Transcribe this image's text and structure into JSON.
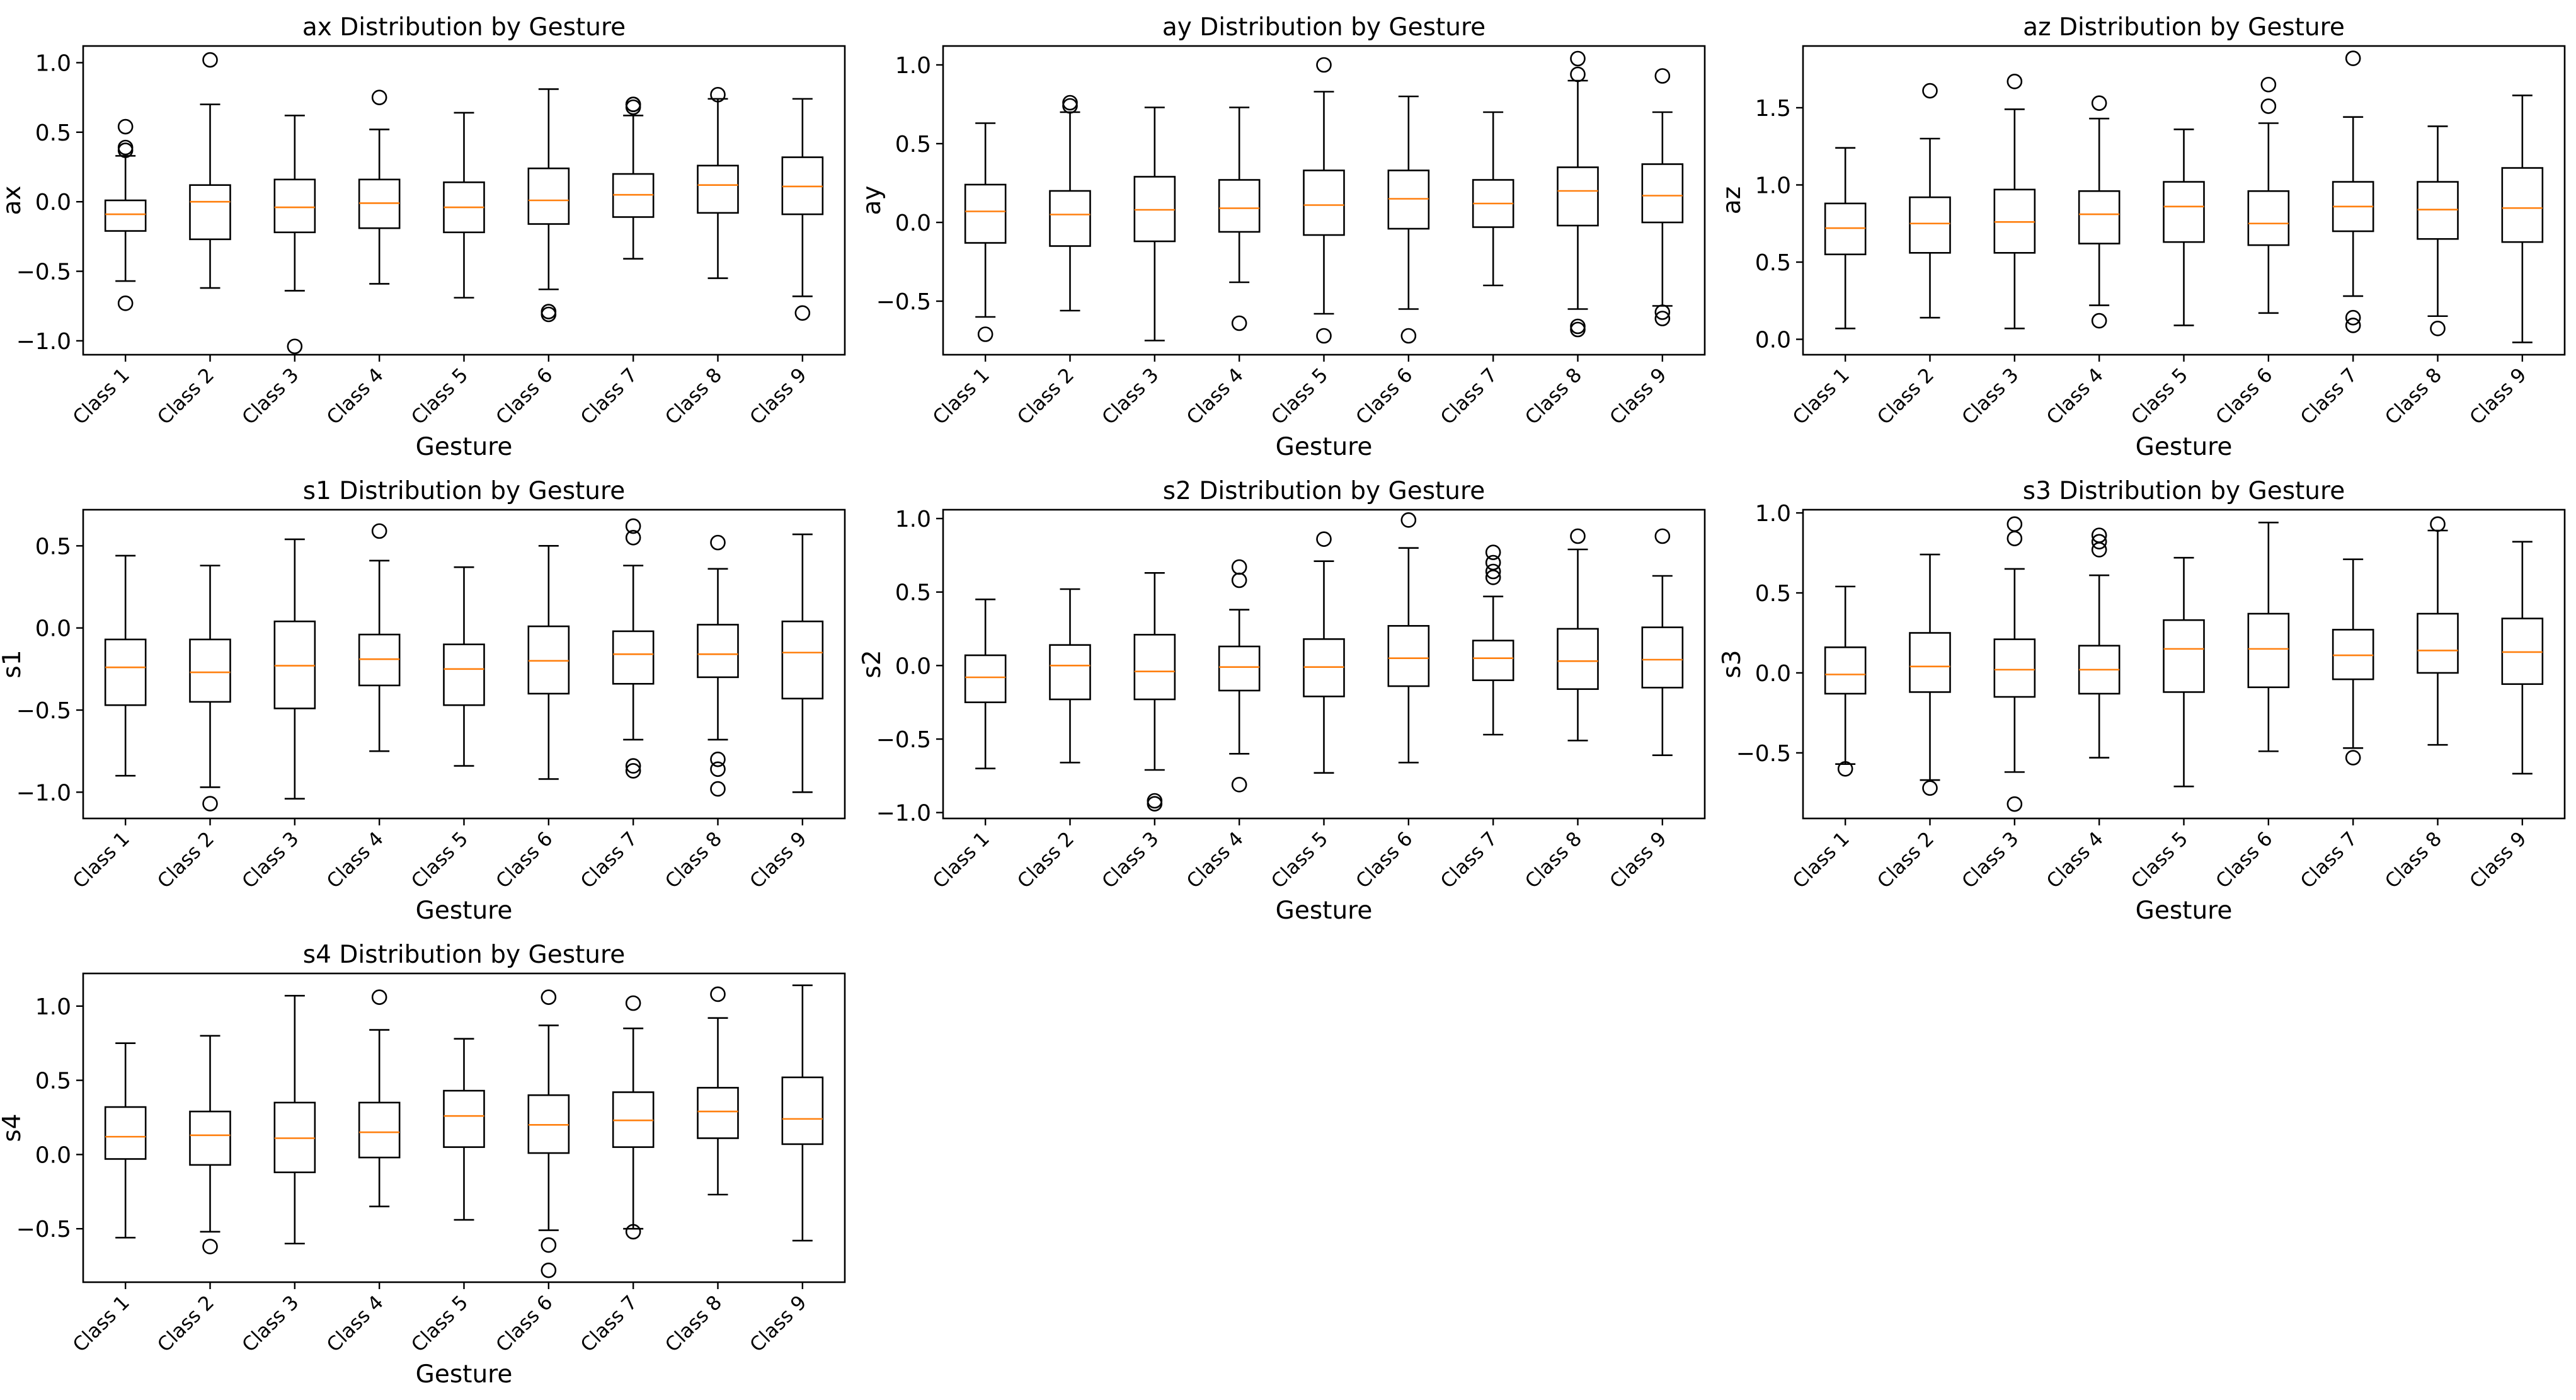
{
  "figure": {
    "colors": {
      "box": "#000000",
      "median": "#ff7f0e",
      "background": "#ffffff"
    }
  },
  "chart_data": [
    {
      "type": "boxplot",
      "title": "ax Distribution by Gesture",
      "xlabel": "Gesture",
      "ylabel": "ax",
      "ylim": [
        -1.1,
        1.12
      ],
      "yticks": [
        -1.0,
        -0.5,
        0.0,
        0.5,
        1.0
      ],
      "yticklabels": [
        "−1.0",
        "−0.5",
        "0.0",
        "0.5",
        "1.0"
      ],
      "categories": [
        "Class 1",
        "Class 2",
        "Class 3",
        "Class 4",
        "Class 5",
        "Class 6",
        "Class 7",
        "Class 8",
        "Class 9"
      ],
      "boxes": [
        {
          "whislo": -0.57,
          "q1": -0.21,
          "med": -0.09,
          "q3": 0.01,
          "whishi": 0.33,
          "fliers": [
            0.54,
            0.39,
            0.37,
            -0.73
          ]
        },
        {
          "whislo": -0.62,
          "q1": -0.27,
          "med": 0.0,
          "q3": 0.12,
          "whishi": 0.7,
          "fliers": [
            1.02
          ]
        },
        {
          "whislo": -0.64,
          "q1": -0.22,
          "med": -0.04,
          "q3": 0.16,
          "whishi": 0.62,
          "fliers": [
            -1.04
          ]
        },
        {
          "whislo": -0.59,
          "q1": -0.19,
          "med": -0.01,
          "q3": 0.16,
          "whishi": 0.52,
          "fliers": [
            0.75
          ]
        },
        {
          "whislo": -0.69,
          "q1": -0.22,
          "med": -0.04,
          "q3": 0.14,
          "whishi": 0.64,
          "fliers": []
        },
        {
          "whislo": -0.63,
          "q1": -0.16,
          "med": 0.01,
          "q3": 0.24,
          "whishi": 0.81,
          "fliers": [
            -0.79,
            -0.81
          ]
        },
        {
          "whislo": -0.41,
          "q1": -0.11,
          "med": 0.05,
          "q3": 0.2,
          "whishi": 0.62,
          "fliers": [
            0.68,
            0.7,
            0.7
          ]
        },
        {
          "whislo": -0.55,
          "q1": -0.08,
          "med": 0.12,
          "q3": 0.26,
          "whishi": 0.74,
          "fliers": [
            0.77
          ]
        },
        {
          "whislo": -0.68,
          "q1": -0.09,
          "med": 0.11,
          "q3": 0.32,
          "whishi": 0.74,
          "fliers": [
            -0.8
          ]
        }
      ]
    },
    {
      "type": "boxplot",
      "title": "ay Distribution by Gesture",
      "xlabel": "Gesture",
      "ylabel": "ay",
      "ylim": [
        -0.84,
        1.12
      ],
      "yticks": [
        -0.5,
        0.0,
        0.5,
        1.0
      ],
      "yticklabels": [
        "−0.5",
        "0.0",
        "0.5",
        "1.0"
      ],
      "categories": [
        "Class 1",
        "Class 2",
        "Class 3",
        "Class 4",
        "Class 5",
        "Class 6",
        "Class 7",
        "Class 8",
        "Class 9"
      ],
      "boxes": [
        {
          "whislo": -0.6,
          "q1": -0.13,
          "med": 0.07,
          "q3": 0.24,
          "whishi": 0.63,
          "fliers": [
            -0.71
          ]
        },
        {
          "whislo": -0.56,
          "q1": -0.15,
          "med": 0.05,
          "q3": 0.2,
          "whishi": 0.7,
          "fliers": [
            0.74,
            0.76
          ]
        },
        {
          "whislo": -0.75,
          "q1": -0.12,
          "med": 0.08,
          "q3": 0.29,
          "whishi": 0.73,
          "fliers": []
        },
        {
          "whislo": -0.38,
          "q1": -0.06,
          "med": 0.09,
          "q3": 0.27,
          "whishi": 0.73,
          "fliers": [
            -0.64
          ]
        },
        {
          "whislo": -0.58,
          "q1": -0.08,
          "med": 0.11,
          "q3": 0.33,
          "whishi": 0.83,
          "fliers": [
            1.0,
            -0.72
          ]
        },
        {
          "whislo": -0.55,
          "q1": -0.04,
          "med": 0.15,
          "q3": 0.33,
          "whishi": 0.8,
          "fliers": [
            -0.72
          ]
        },
        {
          "whislo": -0.4,
          "q1": -0.03,
          "med": 0.12,
          "q3": 0.27,
          "whishi": 0.7,
          "fliers": []
        },
        {
          "whislo": -0.55,
          "q1": -0.02,
          "med": 0.2,
          "q3": 0.35,
          "whishi": 0.9,
          "fliers": [
            1.04,
            0.94,
            -0.66,
            -0.68
          ]
        },
        {
          "whislo": -0.53,
          "q1": 0.0,
          "med": 0.17,
          "q3": 0.37,
          "whishi": 0.7,
          "fliers": [
            0.93,
            -0.57,
            -0.61
          ]
        }
      ]
    },
    {
      "type": "boxplot",
      "title": "az Distribution by Gesture",
      "xlabel": "Gesture",
      "ylabel": "az",
      "ylim": [
        -0.1,
        1.9
      ],
      "yticks": [
        0.0,
        0.5,
        1.0,
        1.5
      ],
      "yticklabels": [
        "0.0",
        "0.5",
        "1.0",
        "1.5"
      ],
      "categories": [
        "Class 1",
        "Class 2",
        "Class 3",
        "Class 4",
        "Class 5",
        "Class 6",
        "Class 7",
        "Class 8",
        "Class 9"
      ],
      "boxes": [
        {
          "whislo": 0.07,
          "q1": 0.55,
          "med": 0.72,
          "q3": 0.88,
          "whishi": 1.24,
          "fliers": []
        },
        {
          "whislo": 0.14,
          "q1": 0.56,
          "med": 0.75,
          "q3": 0.92,
          "whishi": 1.3,
          "fliers": [
            1.61
          ]
        },
        {
          "whislo": 0.07,
          "q1": 0.56,
          "med": 0.76,
          "q3": 0.97,
          "whishi": 1.49,
          "fliers": [
            1.67
          ]
        },
        {
          "whislo": 0.22,
          "q1": 0.62,
          "med": 0.81,
          "q3": 0.96,
          "whishi": 1.43,
          "fliers": [
            1.53,
            0.12
          ]
        },
        {
          "whislo": 0.09,
          "q1": 0.63,
          "med": 0.86,
          "q3": 1.02,
          "whishi": 1.36,
          "fliers": []
        },
        {
          "whislo": 0.17,
          "q1": 0.61,
          "med": 0.75,
          "q3": 0.96,
          "whishi": 1.4,
          "fliers": [
            1.65,
            1.51
          ]
        },
        {
          "whislo": 0.28,
          "q1": 0.7,
          "med": 0.86,
          "q3": 1.02,
          "whishi": 1.44,
          "fliers": [
            1.82,
            0.14,
            0.09
          ]
        },
        {
          "whislo": 0.15,
          "q1": 0.65,
          "med": 0.84,
          "q3": 1.02,
          "whishi": 1.38,
          "fliers": [
            0.07
          ]
        },
        {
          "whislo": -0.02,
          "q1": 0.63,
          "med": 0.85,
          "q3": 1.11,
          "whishi": 1.58,
          "fliers": []
        }
      ]
    },
    {
      "type": "boxplot",
      "title": "s1 Distribution by Gesture",
      "xlabel": "Gesture",
      "ylabel": "s1",
      "ylim": [
        -1.16,
        0.72
      ],
      "yticks": [
        -1.0,
        -0.5,
        0.0,
        0.5
      ],
      "yticklabels": [
        "−1.0",
        "−0.5",
        "0.0",
        "0.5"
      ],
      "categories": [
        "Class 1",
        "Class 2",
        "Class 3",
        "Class 4",
        "Class 5",
        "Class 6",
        "Class 7",
        "Class 8",
        "Class 9"
      ],
      "boxes": [
        {
          "whislo": -0.9,
          "q1": -0.47,
          "med": -0.24,
          "q3": -0.07,
          "whishi": 0.44,
          "fliers": []
        },
        {
          "whislo": -0.97,
          "q1": -0.45,
          "med": -0.27,
          "q3": -0.07,
          "whishi": 0.38,
          "fliers": [
            -1.07
          ]
        },
        {
          "whislo": -1.04,
          "q1": -0.49,
          "med": -0.23,
          "q3": 0.04,
          "whishi": 0.54,
          "fliers": []
        },
        {
          "whislo": -0.75,
          "q1": -0.35,
          "med": -0.19,
          "q3": -0.04,
          "whishi": 0.41,
          "fliers": [
            0.59
          ]
        },
        {
          "whislo": -0.84,
          "q1": -0.47,
          "med": -0.25,
          "q3": -0.1,
          "whishi": 0.37,
          "fliers": []
        },
        {
          "whislo": -0.92,
          "q1": -0.4,
          "med": -0.2,
          "q3": 0.01,
          "whishi": 0.5,
          "fliers": []
        },
        {
          "whislo": -0.68,
          "q1": -0.34,
          "med": -0.16,
          "q3": -0.02,
          "whishi": 0.38,
          "fliers": [
            0.62,
            0.55,
            -0.84,
            -0.87
          ]
        },
        {
          "whislo": -0.68,
          "q1": -0.3,
          "med": -0.16,
          "q3": 0.02,
          "whishi": 0.36,
          "fliers": [
            0.52,
            -0.8,
            -0.86,
            -0.98
          ]
        },
        {
          "whislo": -1.0,
          "q1": -0.43,
          "med": -0.15,
          "q3": 0.04,
          "whishi": 0.57,
          "fliers": []
        }
      ]
    },
    {
      "type": "boxplot",
      "title": "s2 Distribution by Gesture",
      "xlabel": "Gesture",
      "ylabel": "s2",
      "ylim": [
        -1.04,
        1.06
      ],
      "yticks": [
        -1.0,
        -0.5,
        0.0,
        0.5,
        1.0
      ],
      "yticklabels": [
        "−1.0",
        "−0.5",
        "0.0",
        "0.5",
        "1.0"
      ],
      "categories": [
        "Class 1",
        "Class 2",
        "Class 3",
        "Class 4",
        "Class 5",
        "Class 6",
        "Class 7",
        "Class 8",
        "Class 9"
      ],
      "boxes": [
        {
          "whislo": -0.7,
          "q1": -0.25,
          "med": -0.08,
          "q3": 0.07,
          "whishi": 0.45,
          "fliers": []
        },
        {
          "whislo": -0.66,
          "q1": -0.23,
          "med": 0.0,
          "q3": 0.14,
          "whishi": 0.52,
          "fliers": []
        },
        {
          "whislo": -0.71,
          "q1": -0.23,
          "med": -0.04,
          "q3": 0.21,
          "whishi": 0.63,
          "fliers": [
            -0.92,
            -0.94
          ]
        },
        {
          "whislo": -0.6,
          "q1": -0.17,
          "med": -0.01,
          "q3": 0.13,
          "whishi": 0.38,
          "fliers": [
            0.67,
            0.58,
            -0.81
          ]
        },
        {
          "whislo": -0.73,
          "q1": -0.21,
          "med": -0.01,
          "q3": 0.18,
          "whishi": 0.71,
          "fliers": [
            0.86
          ]
        },
        {
          "whislo": -0.66,
          "q1": -0.14,
          "med": 0.05,
          "q3": 0.27,
          "whishi": 0.8,
          "fliers": [
            0.99
          ]
        },
        {
          "whislo": -0.47,
          "q1": -0.1,
          "med": 0.05,
          "q3": 0.17,
          "whishi": 0.47,
          "fliers": [
            0.77,
            0.7,
            0.64,
            0.6
          ]
        },
        {
          "whislo": -0.51,
          "q1": -0.16,
          "med": 0.03,
          "q3": 0.25,
          "whishi": 0.79,
          "fliers": [
            0.88
          ]
        },
        {
          "whislo": -0.61,
          "q1": -0.15,
          "med": 0.04,
          "q3": 0.26,
          "whishi": 0.61,
          "fliers": [
            0.88
          ]
        }
      ]
    },
    {
      "type": "boxplot",
      "title": "s3 Distribution by Gesture",
      "xlabel": "Gesture",
      "ylabel": "s3",
      "ylim": [
        -0.91,
        1.02
      ],
      "yticks": [
        -0.5,
        0.0,
        0.5,
        1.0
      ],
      "yticklabels": [
        "−0.5",
        "0.0",
        "0.5",
        "1.0"
      ],
      "categories": [
        "Class 1",
        "Class 2",
        "Class 3",
        "Class 4",
        "Class 5",
        "Class 6",
        "Class 7",
        "Class 8",
        "Class 9"
      ],
      "boxes": [
        {
          "whislo": -0.57,
          "q1": -0.13,
          "med": -0.01,
          "q3": 0.16,
          "whishi": 0.54,
          "fliers": [
            -0.6
          ]
        },
        {
          "whislo": -0.67,
          "q1": -0.12,
          "med": 0.04,
          "q3": 0.25,
          "whishi": 0.74,
          "fliers": [
            -0.72
          ]
        },
        {
          "whislo": -0.62,
          "q1": -0.15,
          "med": 0.02,
          "q3": 0.21,
          "whishi": 0.65,
          "fliers": [
            0.93,
            0.84,
            -0.82
          ]
        },
        {
          "whislo": -0.53,
          "q1": -0.13,
          "med": 0.02,
          "q3": 0.17,
          "whishi": 0.61,
          "fliers": [
            0.86,
            0.82,
            0.77
          ]
        },
        {
          "whislo": -0.71,
          "q1": -0.12,
          "med": 0.15,
          "q3": 0.33,
          "whishi": 0.72,
          "fliers": []
        },
        {
          "whislo": -0.49,
          "q1": -0.09,
          "med": 0.15,
          "q3": 0.37,
          "whishi": 0.94,
          "fliers": []
        },
        {
          "whislo": -0.47,
          "q1": -0.04,
          "med": 0.11,
          "q3": 0.27,
          "whishi": 0.71,
          "fliers": [
            -0.53
          ]
        },
        {
          "whislo": -0.45,
          "q1": 0.0,
          "med": 0.14,
          "q3": 0.37,
          "whishi": 0.89,
          "fliers": [
            0.93
          ]
        },
        {
          "whislo": -0.63,
          "q1": -0.07,
          "med": 0.13,
          "q3": 0.34,
          "whishi": 0.82,
          "fliers": []
        }
      ]
    },
    {
      "type": "boxplot",
      "title": "s4 Distribution by Gesture",
      "xlabel": "Gesture",
      "ylabel": "s4",
      "ylim": [
        -0.86,
        1.22
      ],
      "yticks": [
        -0.5,
        0.0,
        0.5,
        1.0
      ],
      "yticklabels": [
        "−0.5",
        "0.0",
        "0.5",
        "1.0"
      ],
      "categories": [
        "Class 1",
        "Class 2",
        "Class 3",
        "Class 4",
        "Class 5",
        "Class 6",
        "Class 7",
        "Class 8",
        "Class 9"
      ],
      "boxes": [
        {
          "whislo": -0.56,
          "q1": -0.03,
          "med": 0.12,
          "q3": 0.32,
          "whishi": 0.75,
          "fliers": []
        },
        {
          "whislo": -0.52,
          "q1": -0.07,
          "med": 0.13,
          "q3": 0.29,
          "whishi": 0.8,
          "fliers": [
            -0.62
          ]
        },
        {
          "whislo": -0.6,
          "q1": -0.12,
          "med": 0.11,
          "q3": 0.35,
          "whishi": 1.07,
          "fliers": []
        },
        {
          "whislo": -0.35,
          "q1": -0.02,
          "med": 0.15,
          "q3": 0.35,
          "whishi": 0.84,
          "fliers": [
            1.06
          ]
        },
        {
          "whislo": -0.44,
          "q1": 0.05,
          "med": 0.26,
          "q3": 0.43,
          "whishi": 0.78,
          "fliers": []
        },
        {
          "whislo": -0.51,
          "q1": 0.01,
          "med": 0.2,
          "q3": 0.4,
          "whishi": 0.87,
          "fliers": [
            1.06,
            -0.61,
            -0.78
          ]
        },
        {
          "whislo": -0.5,
          "q1": 0.05,
          "med": 0.23,
          "q3": 0.42,
          "whishi": 0.85,
          "fliers": [
            1.02,
            -0.52
          ]
        },
        {
          "whislo": -0.27,
          "q1": 0.11,
          "med": 0.29,
          "q3": 0.45,
          "whishi": 0.92,
          "fliers": [
            1.08
          ]
        },
        {
          "whislo": -0.58,
          "q1": 0.07,
          "med": 0.24,
          "q3": 0.52,
          "whishi": 1.14,
          "fliers": []
        }
      ]
    }
  ]
}
